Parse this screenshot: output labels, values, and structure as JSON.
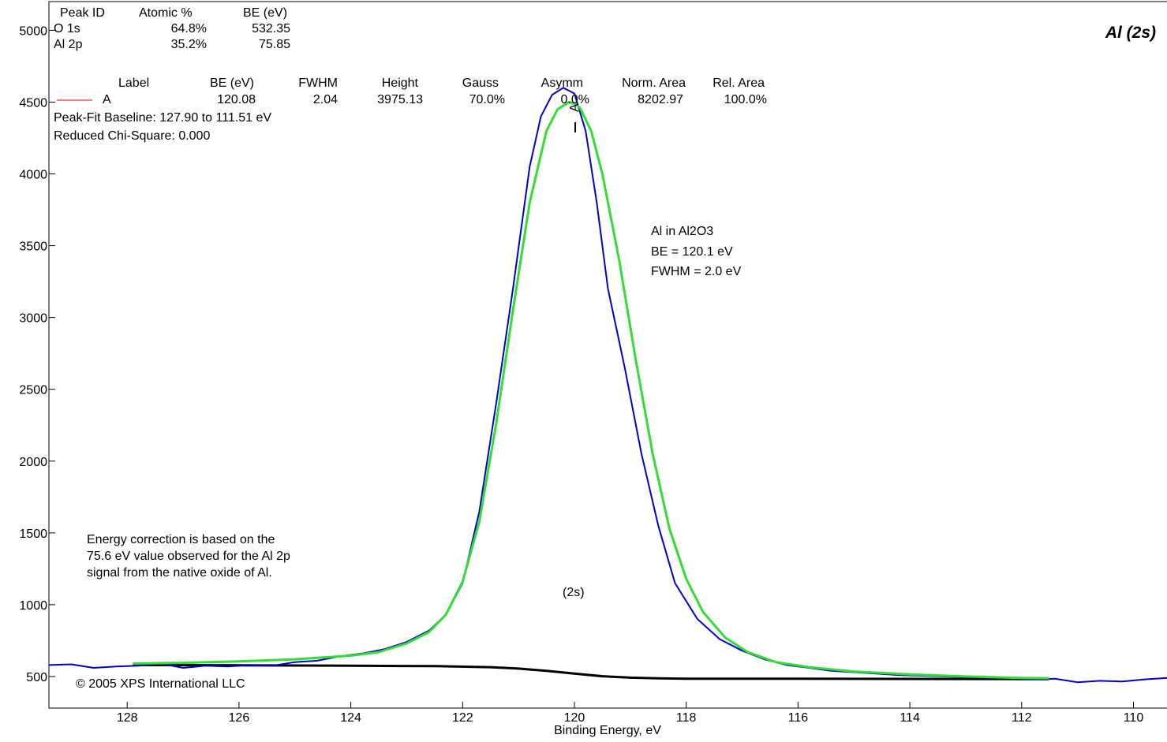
{
  "title": "Al (2s)",
  "summary_table": {
    "headers": [
      "Peak ID",
      "Atomic %",
      "BE (eV)"
    ],
    "rows": [
      [
        "O 1s",
        "64.8%",
        "532.35"
      ],
      [
        "Al 2p",
        "35.2%",
        "75.85"
      ]
    ]
  },
  "fit_table": {
    "headers": [
      "Label",
      "BE (eV)",
      "FWHM",
      "Height",
      "Gauss",
      "Asymm",
      "Norm. Area",
      "Rel. Area"
    ],
    "rows": [
      [
        "A",
        "120.08",
        "2.04",
        "3975.13",
        "70.0%",
        "0.0%",
        "8202.97",
        "100.0%"
      ]
    ],
    "baseline": "Peak-Fit Baseline:  127.90 to  111.51 eV",
    "chi_square": "Reduced Chi-Square: 0.000"
  },
  "annotations": {
    "peak_info": [
      "Al in Al2O3",
      "BE = 120.1 eV",
      "FWHM = 2.0 eV"
    ],
    "energy_note": [
      "Energy correction is based on the",
      "75.6 eV value observed for the Al 2p",
      "signal from the native oxide of Al."
    ],
    "region_label": "(2s)",
    "peak_marker": "A",
    "copyright": "© 2005 XPS International LLC"
  },
  "chart_data": {
    "type": "line",
    "title": "Al (2s)",
    "xlabel": "Binding Energy, eV",
    "ylabel": "",
    "x_reversed": true,
    "xlim": [
      129.4,
      109.4
    ],
    "ylim": [
      280,
      5200
    ],
    "x_ticks": [
      128,
      126,
      124,
      122,
      120,
      118,
      116,
      114,
      112,
      110
    ],
    "y_ticks": [
      500,
      1000,
      1500,
      2000,
      2500,
      3000,
      3500,
      4000,
      4500,
      5000
    ],
    "grid": false,
    "series": [
      {
        "role": "raw",
        "color": "#0000cc",
        "x": [
          129.4,
          129.0,
          128.6,
          128.2,
          127.8,
          127.4,
          127.0,
          126.6,
          126.2,
          125.8,
          125.4,
          125.0,
          124.6,
          124.2,
          123.8,
          123.4,
          123.0,
          122.6,
          122.3,
          122.0,
          121.7,
          121.4,
          121.1,
          120.8,
          120.6,
          120.4,
          120.2,
          120.1,
          120.0,
          119.8,
          119.6,
          119.4,
          119.1,
          118.8,
          118.5,
          118.2,
          117.8,
          117.4,
          117.0,
          116.6,
          116.2,
          115.8,
          115.4,
          115.0,
          114.6,
          114.2,
          113.8,
          113.4,
          113.0,
          112.6,
          112.2,
          111.8,
          111.4,
          111.0,
          110.6,
          110.2,
          109.8,
          109.4
        ],
        "y": [
          580,
          585,
          560,
          570,
          575,
          590,
          560,
          575,
          570,
          580,
          575,
          600,
          610,
          640,
          660,
          690,
          740,
          820,
          930,
          1150,
          1650,
          2400,
          3200,
          4050,
          4400,
          4550,
          4600,
          4580,
          4560,
          4300,
          3800,
          3200,
          2650,
          2050,
          1550,
          1150,
          900,
          760,
          680,
          620,
          580,
          560,
          540,
          530,
          520,
          510,
          505,
          500,
          495,
          490,
          490,
          480,
          485,
          460,
          470,
          465,
          480,
          490
        ]
      },
      {
        "role": "envelope",
        "color": "#33dd33",
        "x": [
          127.9,
          127.0,
          126.0,
          125.0,
          124.0,
          123.5,
          123.0,
          122.6,
          122.3,
          122.0,
          121.7,
          121.4,
          121.1,
          120.8,
          120.5,
          120.3,
          120.1,
          120.0,
          119.9,
          119.7,
          119.5,
          119.2,
          118.9,
          118.6,
          118.3,
          118.0,
          117.7,
          117.3,
          116.9,
          116.4,
          115.8,
          115.0,
          114.0,
          113.0,
          112.0,
          111.51
        ],
        "y": [
          590,
          595,
          605,
          620,
          645,
          670,
          730,
          810,
          930,
          1160,
          1580,
          2260,
          3050,
          3800,
          4300,
          4450,
          4500,
          4490,
          4460,
          4300,
          4000,
          3400,
          2700,
          2050,
          1530,
          1180,
          950,
          770,
          670,
          600,
          565,
          535,
          515,
          500,
          490,
          488
        ]
      },
      {
        "role": "background",
        "color": "#000000",
        "x": [
          127.9,
          126.0,
          124.0,
          122.5,
          121.5,
          121.0,
          120.5,
          120.0,
          119.5,
          119.0,
          118.5,
          118.0,
          116.0,
          114.0,
          111.51
        ],
        "y": [
          580,
          578,
          575,
          572,
          565,
          555,
          540,
          520,
          502,
          492,
          487,
          485,
          484,
          483,
          482
        ]
      }
    ]
  }
}
